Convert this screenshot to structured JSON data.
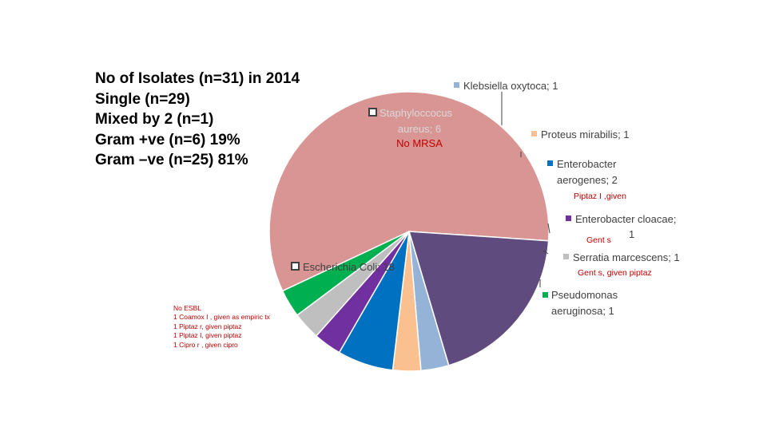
{
  "summary": {
    "lines": [
      "No of Isolates (n=31) in 2014",
      "Single (n=29)",
      "Mixed by 2 (n=1)",
      "Gram +ve (n=6) 19%",
      "Gram –ve (n=25) 81%"
    ]
  },
  "chart_data": {
    "type": "pie",
    "show_legend": false,
    "slices": [
      {
        "label_lines": [
          "Escherichia Coli; 18"
        ],
        "value": 18,
        "color": "#d99594"
      },
      {
        "label_lines": [
          "Staphyloccocus",
          "aureus; 6"
        ],
        "value": 6,
        "color": "#5f4b7d"
      },
      {
        "label_lines": [
          "Klebsiella oxytoca; 1"
        ],
        "value": 1,
        "color": "#95b3d7"
      },
      {
        "label_lines": [
          "Proteus mirabilis; 1"
        ],
        "value": 1,
        "color": "#fac090"
      },
      {
        "label_lines": [
          "Enterobacter",
          "aerogenes; 2"
        ],
        "value": 2,
        "color": "#0070c0"
      },
      {
        "label_lines": [
          "Enterobacter cloacae;",
          "1"
        ],
        "value": 1,
        "color": "#7030a0"
      },
      {
        "label_lines": [
          "Serratia marcescens; 1"
        ],
        "value": 1,
        "color": "#bfbfbf"
      },
      {
        "label_lines": [
          "Pseudomonas",
          "aeruginosa; 1"
        ],
        "value": 1,
        "color": "#00b050"
      }
    ],
    "annotations": {
      "staph": "No MRSA",
      "enterobacter_aerogenes": "Piptaz I ,given",
      "enterobacter_cloacae": "Gent s",
      "serratia": "Gent s, given piptaz"
    },
    "ecoli_notes": [
      "No ESBL",
      "1 Coamox I , given as empiric tx",
      "1 Piptaz r, given piptaz",
      "1 Piptaz I, given piptaz",
      "1 Cipro r , given cipro"
    ]
  }
}
